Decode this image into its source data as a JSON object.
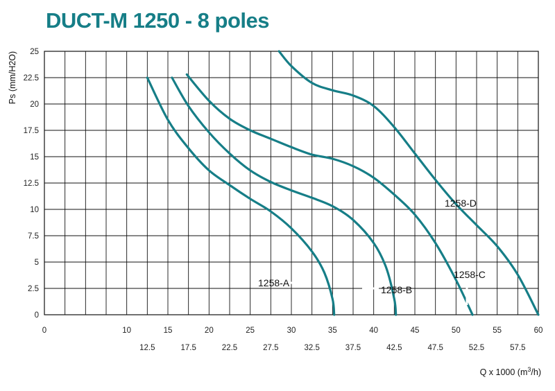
{
  "colors": {
    "curve": "#167e87",
    "title": "#167e87",
    "grid": "#111111"
  },
  "chart_data": {
    "type": "line",
    "title": "DUCT-M 1250 - 8 poles",
    "xlabel": "Q x 1000 (m3/h)",
    "xlabel_prefix": "Q x 1000 (m",
    "xlabel_sup": "3",
    "xlabel_suffix": "/h)",
    "ylabel": "Ps  (mm/H2O)",
    "xlim": [
      0,
      60
    ],
    "ylim": [
      0,
      25
    ],
    "grid": true,
    "x_ticks_top_row": [
      "0",
      "10",
      "15",
      "20",
      "25",
      "30",
      "35",
      "40",
      "45",
      "50",
      "55",
      "60"
    ],
    "x_ticks_bottom_row": [
      "12.5",
      "17.5",
      "22.5",
      "27.5",
      "32.5",
      "37.5",
      "42.5",
      "47.5",
      "52.5",
      "57.5"
    ],
    "y_ticks": [
      "0",
      "2.5",
      "5",
      "7.5",
      "10",
      "12.5",
      "15",
      "17.5",
      "20",
      "22.5",
      "25"
    ],
    "series": [
      {
        "name": "1258-A",
        "points": [
          [
            12.5,
            22.5
          ],
          [
            15,
            18.5
          ],
          [
            17.5,
            15.8
          ],
          [
            20,
            13.7
          ],
          [
            22.5,
            12.3
          ],
          [
            25,
            11
          ],
          [
            27.5,
            9.8
          ],
          [
            30,
            8.2
          ],
          [
            32.5,
            6
          ],
          [
            34,
            4
          ],
          [
            35,
            1.5
          ],
          [
            35.2,
            0
          ]
        ]
      },
      {
        "name": "1258-B",
        "points": [
          [
            15.5,
            22.5
          ],
          [
            17.5,
            19.8
          ],
          [
            20,
            17.3
          ],
          [
            22.5,
            15.3
          ],
          [
            25,
            13.7
          ],
          [
            27.5,
            12.6
          ],
          [
            30,
            11.8
          ],
          [
            32.5,
            11.1
          ],
          [
            35,
            10.3
          ],
          [
            37.5,
            9
          ],
          [
            40,
            6.8
          ],
          [
            41.5,
            4.5
          ],
          [
            42.5,
            1.5
          ],
          [
            42.7,
            0
          ]
        ]
      },
      {
        "name": "1258-C",
        "points": [
          [
            17.3,
            22.8
          ],
          [
            20,
            20.3
          ],
          [
            22.5,
            18.6
          ],
          [
            25,
            17.5
          ],
          [
            27.5,
            16.7
          ],
          [
            30,
            15.9
          ],
          [
            32.5,
            15.2
          ],
          [
            35,
            14.8
          ],
          [
            37.5,
            14.1
          ],
          [
            40,
            13
          ],
          [
            42.5,
            11.4
          ],
          [
            45,
            9.5
          ],
          [
            47.5,
            6.8
          ],
          [
            50,
            3.3
          ],
          [
            52,
            0
          ]
        ]
      },
      {
        "name": "1258-D",
        "points": [
          [
            28.5,
            25
          ],
          [
            30,
            23.6
          ],
          [
            32.5,
            22
          ],
          [
            35,
            21.3
          ],
          [
            37.5,
            20.8
          ],
          [
            40,
            19.8
          ],
          [
            42.5,
            17.8
          ],
          [
            45,
            15.3
          ],
          [
            47.5,
            12.8
          ],
          [
            50,
            10.5
          ],
          [
            52.5,
            8.5
          ],
          [
            55,
            6.5
          ],
          [
            57.5,
            3.8
          ],
          [
            60,
            0
          ]
        ]
      }
    ]
  }
}
